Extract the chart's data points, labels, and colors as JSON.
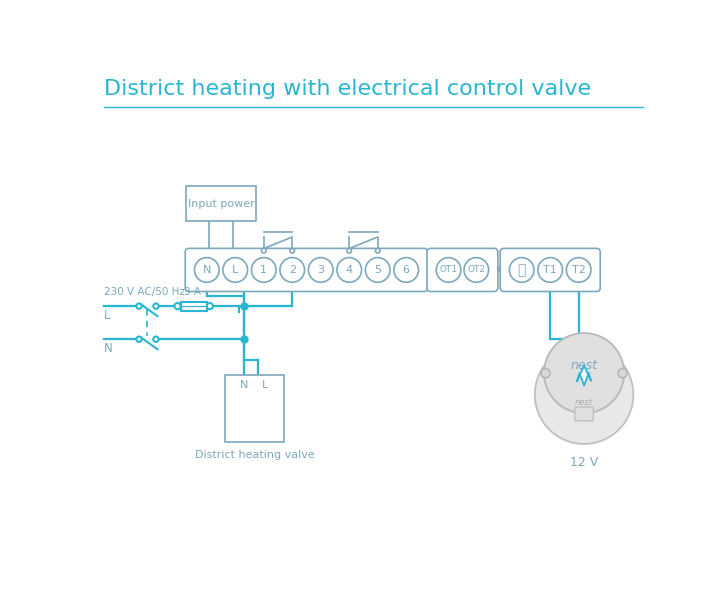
{
  "title": "District heating with electrical control valve",
  "title_color": "#29b6d2",
  "bg_color": "#ffffff",
  "wire_color": "#29b6d2",
  "component_color": "#7da8bc",
  "text_color": "#7da8bc",
  "input_power_label": "Input power",
  "district_valve_label": "District heating valve",
  "voltage_label": "230 V AC/50 Hz",
  "fuse_label": "3 A",
  "L_label": "L",
  "N_label": "N",
  "nest_label": "12 V",
  "term_labels_main": [
    "N",
    "L",
    "1",
    "2",
    "3",
    "4",
    "5",
    "6"
  ],
  "term_labels_ot": [
    "OT1",
    "OT2"
  ],
  "term_labels_t": [
    "⏚",
    "T1",
    "T2"
  ]
}
